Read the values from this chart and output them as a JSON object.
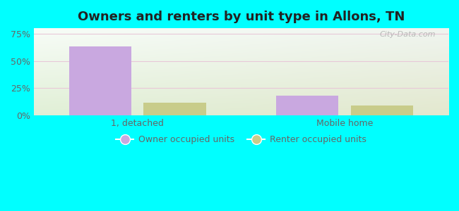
{
  "title": "Owners and renters by unit type in Allons, TN",
  "categories": [
    "1, detached",
    "Mobile home"
  ],
  "owner_values": [
    63.0,
    18.0
  ],
  "renter_values": [
    12.0,
    9.0
  ],
  "owner_color": "#c9a8e0",
  "renter_color": "#c8cc8a",
  "yticks": [
    0,
    25,
    50,
    75
  ],
  "ytick_labels": [
    "0%",
    "25%",
    "50%",
    "75%"
  ],
  "ylim": [
    0,
    80
  ],
  "bar_width": 0.3,
  "bg_colors": [
    "#e8f5e6",
    "#f5fdf5"
  ],
  "outer_bg": "#00ffff",
  "legend_labels": [
    "Owner occupied units",
    "Renter occupied units"
  ],
  "watermark": "City-Data.com",
  "title_fontsize": 13,
  "axis_fontsize": 9,
  "legend_fontsize": 9,
  "grid_color": "#e8c8d8",
  "tick_color": "#666666"
}
